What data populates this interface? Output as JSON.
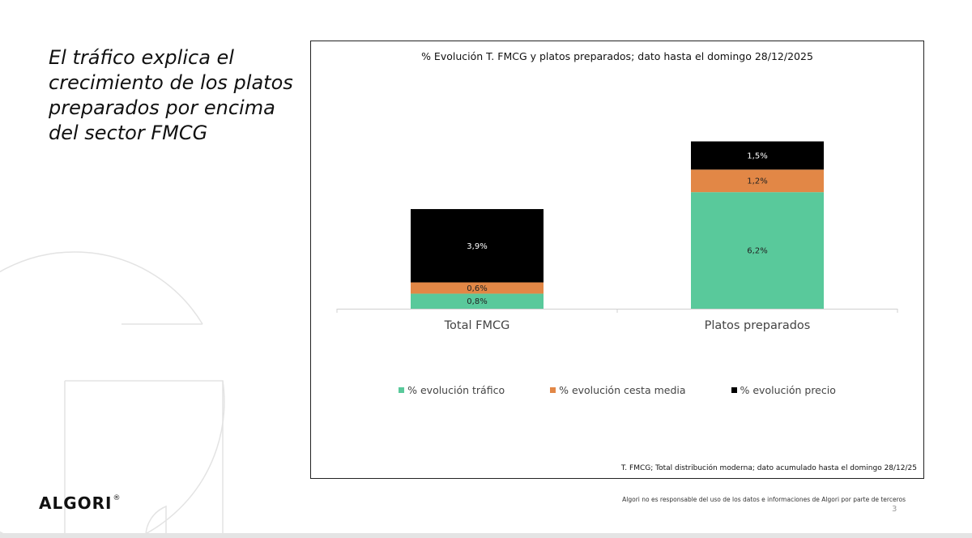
{
  "headline": "El tráfico explica el crecimiento de los platos preparados por encima del sector FMCG",
  "brand": {
    "logo_text": "ALGORI",
    "registered_mark": "®"
  },
  "chart_data": {
    "type": "bar",
    "stacked": true,
    "title": "% Evolución T. FMCG y platos preparados; dato hasta el domingo 28/12/2025",
    "categories": [
      "Total FMCG",
      "Platos preparados"
    ],
    "series": [
      {
        "name": "% evolución tráfico",
        "values": [
          0.8,
          6.2
        ],
        "labels": [
          "0,8%",
          "6,2%"
        ],
        "color": "#59C99B"
      },
      {
        "name": "% evolución cesta media",
        "values": [
          0.6,
          1.2
        ],
        "labels": [
          "0,6%",
          "1,2%"
        ],
        "color": "#E28746"
      },
      {
        "name": "% evolución precio",
        "values": [
          3.9,
          1.5
        ],
        "labels": [
          "3,9%",
          "1,5%"
        ],
        "color": "#000000"
      }
    ],
    "ylim": [
      0,
      10
    ],
    "xlabel": "",
    "ylabel": "",
    "grid": false,
    "legend_position": "bottom",
    "source_note": "T. FMCG; Total distribución moderna; dato acumulado hasta el domingo 28/12/25"
  },
  "disclaimer": "Algori no es responsable del uso de los datos e informaciones de Algori por parte de terceros",
  "page_number": "3"
}
